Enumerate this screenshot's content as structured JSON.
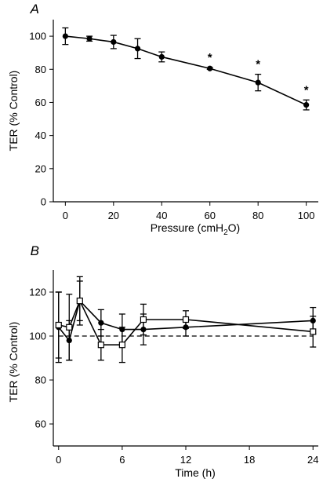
{
  "chart_data": [
    {
      "type": "line",
      "panel_label": "A",
      "xlabel": "Pressure (cmH2O)",
      "xlabel_main": "Pressure (cmH",
      "xlabel_sub": "2",
      "xlabel_end": "O)",
      "ylabel": "TER (% Control)",
      "xlim": [
        -5,
        105
      ],
      "ylim": [
        0,
        110
      ],
      "xticks": [
        0,
        20,
        40,
        60,
        80,
        100
      ],
      "yticks": [
        0,
        20,
        40,
        60,
        80,
        100
      ],
      "series": [
        {
          "marker": "filled-circle",
          "x": [
            0,
            10,
            20,
            30,
            40,
            60,
            80,
            100
          ],
          "y": [
            100,
            98.5,
            96.5,
            92.5,
            87.5,
            80.5,
            72,
            58.5
          ],
          "err": [
            5,
            1.5,
            4,
            6,
            3,
            0.5,
            5,
            3
          ]
        }
      ],
      "annotations": [
        {
          "text": "*",
          "x": 60
        },
        {
          "text": "*",
          "x": 80
        },
        {
          "text": "*",
          "x": 100
        }
      ]
    },
    {
      "type": "line",
      "panel_label": "B",
      "xlabel": "Time (h)",
      "ylabel": "TER (% Control)",
      "xlim": [
        -0.5,
        24.5
      ],
      "ylim": [
        50,
        130
      ],
      "xticks": [
        0,
        6,
        12,
        18,
        24
      ],
      "yticks": [
        60,
        80,
        100,
        120
      ],
      "reference_line": 100,
      "series": [
        {
          "marker": "filled-circle",
          "x": [
            0,
            1,
            2,
            4,
            6,
            8,
            12,
            24
          ],
          "y": [
            104,
            98,
            116,
            106,
            103,
            103,
            104,
            107
          ],
          "err": [
            16,
            9,
            9,
            6,
            7,
            7,
            4,
            6
          ]
        },
        {
          "marker": "open-square",
          "x": [
            0,
            1,
            2,
            4,
            6,
            8,
            12,
            24
          ],
          "y": [
            105,
            104,
            116,
            96,
            96,
            107.5,
            107.5,
            102
          ],
          "err": [
            15,
            15,
            11,
            7,
            8,
            7,
            4,
            7
          ]
        }
      ]
    }
  ]
}
